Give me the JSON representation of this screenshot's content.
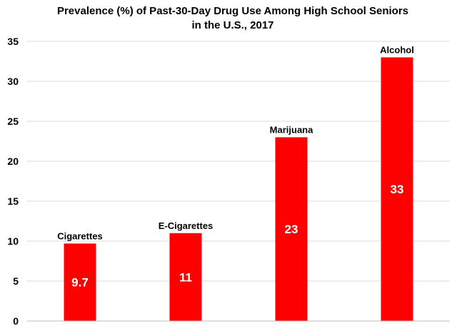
{
  "chart_data": {
    "type": "bar",
    "title_lines": [
      "Prevalence (%) of Past-30-Day Drug Use Among High School Seniors",
      "in the U.S., 2017"
    ],
    "categories": [
      "Cigarettes",
      "E-Cigarettes",
      "Marijuana",
      "Alcohol"
    ],
    "values": [
      9.7,
      11,
      23,
      33
    ],
    "value_labels": [
      "9.7",
      "11",
      "23",
      "33"
    ],
    "xlabel": "",
    "ylabel": "",
    "ylim": [
      0,
      35
    ],
    "yticks": [
      0,
      5,
      10,
      15,
      20,
      25,
      30,
      35
    ],
    "grid": true,
    "legend": "none",
    "bar_color": "#ff0000",
    "gridline_color": "#d9d9d9"
  }
}
